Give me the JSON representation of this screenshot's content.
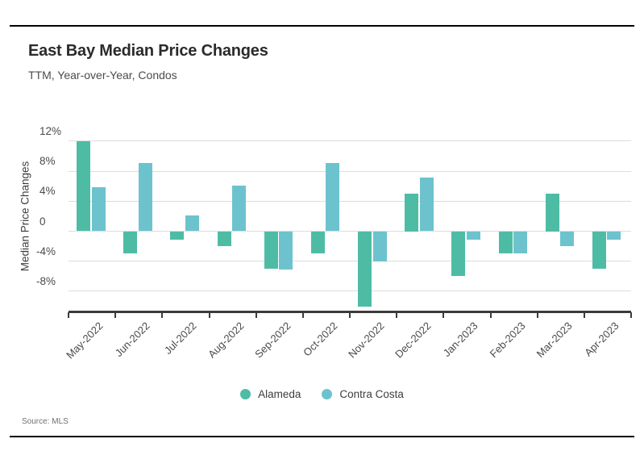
{
  "header": {
    "title": "East Bay Median Price Changes",
    "subtitle": "TTM, Year-over-Year, Condos"
  },
  "source": {
    "label": "Source: MLS"
  },
  "legend": [
    {
      "name": "Alameda",
      "color": "#4EBCA5"
    },
    {
      "name": "Contra Costa",
      "color": "#6CC3CE"
    }
  ],
  "colors": {
    "alameda": "#4EBCA5",
    "contra_costa": "#6CC3CE",
    "gridline": "#DCDCDC",
    "axis": "#3B3B3B"
  },
  "chart_data": {
    "type": "bar",
    "title": "East Bay Median Price Changes",
    "subtitle": "TTM, Year-over-Year, Condos",
    "xlabel": "",
    "ylabel": "Median Price Changes",
    "categories": [
      "May-2022",
      "Jun-2022",
      "Jul-2022",
      "Aug-2022",
      "Sep-2022",
      "Oct-2022",
      "Nov-2022",
      "Dec-2022",
      "Jan-2023",
      "Feb-2023",
      "Mar-2023",
      "Apr-2023"
    ],
    "series": [
      {
        "name": "Alameda",
        "color": "#4EBCA5",
        "values": [
          12.0,
          -3.0,
          -1.1,
          -2.0,
          -5.0,
          -3.0,
          -10.0,
          5.0,
          -6.0,
          -3.0,
          5.0,
          -5.0
        ]
      },
      {
        "name": "Contra Costa",
        "color": "#6CC3CE",
        "values": [
          5.9,
          9.1,
          2.1,
          6.1,
          -5.1,
          9.1,
          -4.0,
          7.1,
          -1.1,
          -3.0,
          -2.0,
          -1.1
        ]
      }
    ],
    "yticks": [
      12,
      8,
      4,
      0,
      -4,
      -8
    ],
    "ytick_labels": [
      "12%",
      "8%",
      "4%",
      "0",
      "-4%",
      "-8%"
    ],
    "ylim": [
      -10.8,
      12.6
    ],
    "grid": true,
    "legend_position": "bottom"
  }
}
